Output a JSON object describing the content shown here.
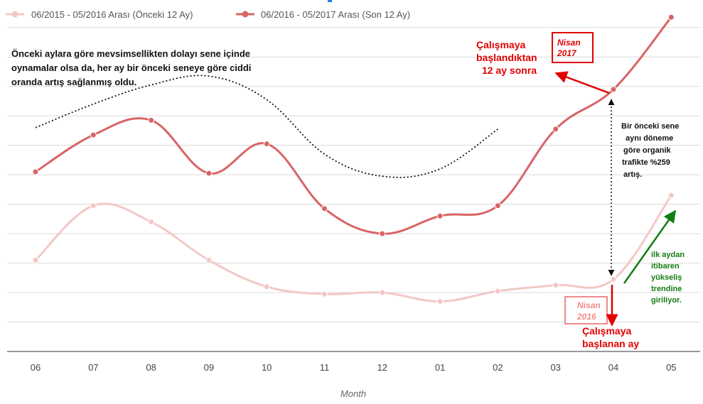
{
  "chart_data": {
    "type": "line",
    "categories": [
      "06",
      "07",
      "08",
      "09",
      "10",
      "11",
      "12",
      "01",
      "02",
      "03",
      "04",
      "05"
    ],
    "xlabel": "Month",
    "ylabel": "",
    "ylim": [
      0,
      11.5
    ],
    "grid": true,
    "legend_position": "top-left",
    "series": [
      {
        "name": "06/2015 - 05/2016 Arası (Önceki 12 Ay)",
        "color": "#f2c8c6",
        "values": [
          3.1,
          4.95,
          4.4,
          3.1,
          2.2,
          1.95,
          2.0,
          1.7,
          2.05,
          2.25,
          2.45,
          5.3
        ]
      },
      {
        "name": "06/2016 - 05/2017 Arası (Son 12 Ay)",
        "color": "#d96465",
        "values": [
          6.1,
          7.35,
          7.85,
          6.05,
          7.05,
          4.85,
          4.0,
          4.6,
          4.95,
          7.55,
          8.9,
          11.35
        ]
      }
    ],
    "trend_curve": {
      "color": "#111111",
      "x": [
        0,
        1,
        2,
        3,
        4,
        5,
        6,
        7,
        8
      ],
      "values": [
        7.6,
        8.4,
        9.05,
        9.35,
        8.55,
        6.7,
        5.95,
        6.2,
        7.55
      ]
    },
    "annotations": {
      "top_note": [
        "Önceki aylara göre mevsimsellikten dolayı sene içinde",
        "oynamalar olsa da, her ay bir önceki seneye göre ciddi",
        "oranda artış sağlanmış oldu."
      ],
      "started_after_12": [
        "Çalışmaya",
        "başlandıktan",
        "12 ay sonra"
      ],
      "nisan_2017": [
        "Nisan",
        "2017"
      ],
      "yoy_note": [
        "Bir önceki sene",
        "aynı döneme",
        "göre organik",
        "trafikte %259",
        "artış."
      ],
      "green_note": [
        "ilk aydan",
        "itibaren",
        "yükseliş",
        "trendine",
        "giriliyor."
      ],
      "nisan_2016": [
        "Nisan",
        "2016"
      ],
      "started_month": [
        "Çalışmaya",
        "başlanan ay"
      ]
    }
  }
}
